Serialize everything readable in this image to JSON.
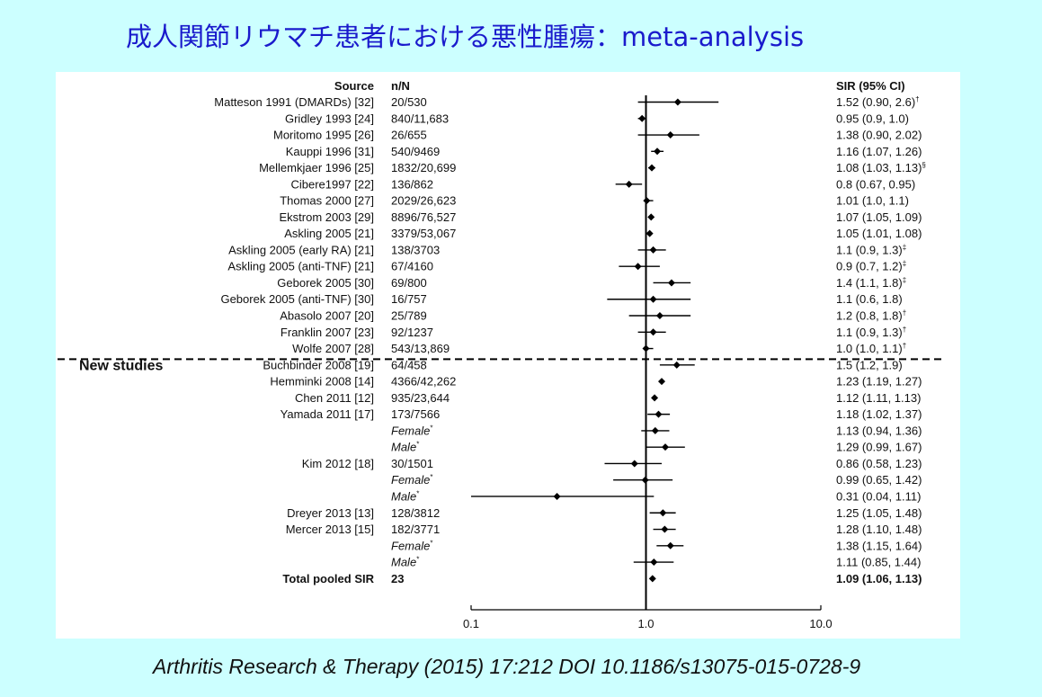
{
  "slide": {
    "title": "成人関節リウマチ患者における悪性腫瘍：meta-analysis",
    "citation": "Arthritis Research & Therapy (2015) 17:212 DOI 10.1186/s13075-015-0728-9"
  },
  "chart_data": {
    "type": "forest",
    "x_scale": "log",
    "xlim": [
      0.1,
      10.0
    ],
    "x_ticks": [
      "0.1",
      "1.0",
      "10.0"
    ],
    "reference_line": 1.0,
    "headers": {
      "source": "Source",
      "n": "n/N",
      "ci": "SIR (95% CI)"
    },
    "section_label": "New studies",
    "colors": {
      "marker": "#000000",
      "title": "#1a1acc",
      "background": "#ccffff"
    },
    "rows": [
      {
        "source": "Matteson 1991 (DMARDs) [32]",
        "n": "20/530",
        "ci": "1.52 (0.90, 2.6)",
        "sup": "†",
        "est": 1.52,
        "lo": 0.9,
        "hi": 2.6
      },
      {
        "source": "Gridley  1993 [24]",
        "n": "840/11,683",
        "ci": "0.95 (0.9, 1.0)",
        "est": 0.95,
        "lo": 0.9,
        "hi": 1.0
      },
      {
        "source": "Moritomo 1995 [26]",
        "n": "26/655",
        "ci": "1.38 (0.90, 2.02)",
        "est": 1.38,
        "lo": 0.9,
        "hi": 2.02
      },
      {
        "source": "Kauppi 1996 [31]",
        "n": "540/9469",
        "ci": "1.16 (1.07, 1.26)",
        "est": 1.16,
        "lo": 1.07,
        "hi": 1.26
      },
      {
        "source": "Mellemkjaer 1996 [25]",
        "n": "1832/20,699",
        "ci": "1.08 (1.03, 1.13)",
        "sup": "§",
        "est": 1.08,
        "lo": 1.03,
        "hi": 1.13
      },
      {
        "source": "Cibere1997 [22]",
        "n": "136/862",
        "ci": "0.8 (0.67, 0.95)",
        "est": 0.8,
        "lo": 0.67,
        "hi": 0.95
      },
      {
        "source": "Thomas 2000 [27]",
        "n": "2029/26,623",
        "ci": "1.01 (1.0, 1.1)",
        "est": 1.01,
        "lo": 1.0,
        "hi": 1.1
      },
      {
        "source": "Ekstrom 2003 [29]",
        "n": "8896/76,527",
        "ci": "1.07 (1.05, 1.09)",
        "est": 1.07,
        "lo": 1.05,
        "hi": 1.09
      },
      {
        "source": "Askling 2005 [21]",
        "n": "3379/53,067",
        "ci": "1.05 (1.01, 1.08)",
        "est": 1.05,
        "lo": 1.01,
        "hi": 1.08
      },
      {
        "source": "Askling 2005 (early RA) [21]",
        "n": "138/3703",
        "ci": "1.1 (0.9, 1.3)",
        "sup": "‡",
        "est": 1.1,
        "lo": 0.9,
        "hi": 1.3
      },
      {
        "source": "Askling 2005 (anti-TNF) [21]",
        "n": "67/4160",
        "ci": "0.9 (0.7, 1.2)",
        "sup": "‡",
        "est": 0.9,
        "lo": 0.7,
        "hi": 1.2
      },
      {
        "source": "Geborek 2005 [30]",
        "n": "69/800",
        "ci": "1.4 (1.1, 1.8)",
        "sup": "‡",
        "est": 1.4,
        "lo": 1.1,
        "hi": 1.8
      },
      {
        "source": "Geborek 2005 (anti-TNF) [30]",
        "n": "16/757",
        "ci": "1.1 (0.6, 1.8)",
        "est": 1.1,
        "lo": 0.6,
        "hi": 1.8
      },
      {
        "source": "Abasolo 2007 [20]",
        "n": "25/789",
        "ci": "1.2 (0.8, 1.8)",
        "sup": "†",
        "est": 1.2,
        "lo": 0.8,
        "hi": 1.8
      },
      {
        "source": "Franklin 2007 [23]",
        "n": "92/1237",
        "ci": "1.1 (0.9, 1.3)",
        "sup": "†",
        "est": 1.1,
        "lo": 0.9,
        "hi": 1.3
      },
      {
        "source": "Wolfe 2007 [28]",
        "n": "543/13,869",
        "ci": "1.0 (1.0, 1.1)",
        "sup": "†",
        "est": 1.0,
        "lo": 1.0,
        "hi": 1.1
      },
      {
        "source": "Buchbinder 2008 [19]",
        "n": "64/458",
        "ci": "1.5 (1.2, 1.9)",
        "est": 1.5,
        "lo": 1.2,
        "hi": 1.9
      },
      {
        "source": "Hemminki 2008 [14]",
        "n": "4366/42,262",
        "ci": "1.23 (1.19, 1.27)",
        "est": 1.23,
        "lo": 1.19,
        "hi": 1.27
      },
      {
        "source": "Chen 2011 [12]",
        "n": "935/23,644",
        "ci": "1.12 (1.11, 1.13)",
        "est": 1.12,
        "lo": 1.11,
        "hi": 1.13
      },
      {
        "source": "Yamada 2011 [17]",
        "n": "173/7566",
        "ci": "1.18 (1.02, 1.37)",
        "est": 1.18,
        "lo": 1.02,
        "hi": 1.37
      },
      {
        "sub": "Female",
        "sup": "*",
        "source": "",
        "n": "",
        "ci": "1.13 (0.94, 1.36)",
        "est": 1.13,
        "lo": 0.94,
        "hi": 1.36
      },
      {
        "sub": "Male",
        "sup": "*",
        "source": "",
        "n": "",
        "ci": "1.29 (0.99, 1.67)",
        "est": 1.29,
        "lo": 0.99,
        "hi": 1.67
      },
      {
        "source": "Kim 2012 [18]",
        "n": "30/1501",
        "ci": "0.86 (0.58, 1.23)",
        "est": 0.86,
        "lo": 0.58,
        "hi": 1.23
      },
      {
        "sub": "Female",
        "sup": "*",
        "source": "",
        "n": "",
        "ci": "0.99 (0.65, 1.42)",
        "est": 0.99,
        "lo": 0.65,
        "hi": 1.42
      },
      {
        "sub": "Male",
        "sup": "*",
        "source": "",
        "n": "",
        "ci": "0.31 (0.04, 1.11)",
        "est": 0.31,
        "lo": 0.04,
        "hi": 1.11
      },
      {
        "source": "Dreyer 2013 [13]",
        "n": "128/3812",
        "ci": "1.25 (1.05, 1.48)",
        "est": 1.25,
        "lo": 1.05,
        "hi": 1.48
      },
      {
        "source": "Mercer 2013 [15]",
        "n": "182/3771",
        "ci": "1.28 (1.10, 1.48)",
        "est": 1.28,
        "lo": 1.1,
        "hi": 1.48
      },
      {
        "sub": "Female",
        "sup": "*",
        "source": "",
        "n": "",
        "ci": "1.38 (1.15, 1.64)",
        "est": 1.38,
        "lo": 1.15,
        "hi": 1.64
      },
      {
        "sub": "Male",
        "sup": "*",
        "source": "",
        "n": "",
        "ci": "1.11 (0.85, 1.44)",
        "est": 1.11,
        "lo": 0.85,
        "hi": 1.44
      },
      {
        "total": true,
        "source": "Total pooled SIR",
        "n": "23",
        "ci": "1.09 (1.06, 1.13)",
        "est": 1.09,
        "lo": 1.06,
        "hi": 1.13
      }
    ]
  }
}
